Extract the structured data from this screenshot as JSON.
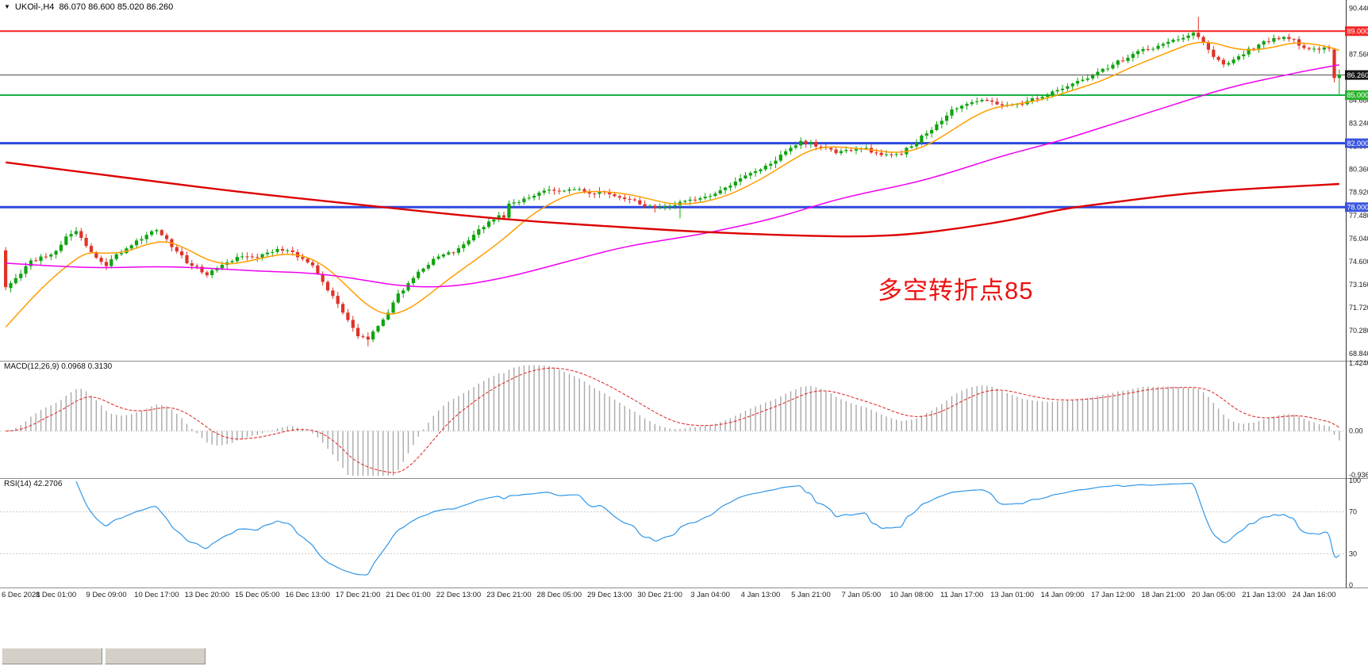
{
  "header": {
    "symbol": "UKOil-,H4",
    "ohlc": "86.070 86.600 85.020 86.260"
  },
  "annotation": {
    "text": "多空转折点85",
    "color": "#ee1111"
  },
  "time_axis": {
    "labels": [
      "6 Dec 2021",
      "8 Dec 01:00",
      "9 Dec 09:00",
      "10 Dec 17:00",
      "13 Dec 20:00",
      "15 Dec 05:00",
      "16 Dec 13:00",
      "17 Dec 21:00",
      "21 Dec 01:00",
      "22 Dec 13:00",
      "23 Dec 21:00",
      "28 Dec 05:00",
      "29 Dec 13:00",
      "30 Dec 21:00",
      "3 Jan 04:00",
      "4 Jan 13:00",
      "5 Jan 21:00",
      "7 Jan 05:00",
      "10 Jan 08:00",
      "11 Jan 17:00",
      "13 Jan 01:00",
      "14 Jan 09:00",
      "17 Jan 12:00",
      "18 Jan 21:00",
      "20 Jan 05:00",
      "21 Jan 13:00",
      "24 Jan 16:00"
    ]
  },
  "taskbar": {
    "minimized_windows": [
      "",
      ""
    ]
  },
  "chart_data": [
    {
      "type": "candlestick",
      "symbol": "UKOil-",
      "timeframe": "H4",
      "current_ohlc": {
        "open": 86.07,
        "high": 86.6,
        "low": 85.02,
        "close": 86.26
      },
      "n": 266,
      "x_label_step": 10,
      "y_range": [
        68.55,
        90.75
      ],
      "y_ticks": [
        "90.440",
        "89.000",
        "87.560",
        "86.120",
        "84.680",
        "83.240",
        "81.800",
        "80.360",
        "78.920",
        "77.480",
        "76.040",
        "74.600",
        "73.160",
        "71.720",
        "70.280",
        "68.840"
      ],
      "bull_color": "#0fa40f",
      "bear_color": "#e03228",
      "noise_seed": 11,
      "noise_amp": 0.11,
      "wick_base": 0.05,
      "wick_rand": 0.22,
      "hlines": [
        {
          "price": 89.0,
          "label": "89.000",
          "color": "#ff1f1f",
          "label_bg": "#f42525",
          "width": 2
        },
        {
          "price": 86.26,
          "label": "86.260",
          "color": "#4a4a4a",
          "label_bg": "#141414",
          "width": 1
        },
        {
          "price": 85.0,
          "label": "85.000",
          "color": "#17b24a",
          "label_bg": "#2cb42c",
          "width": 2
        },
        {
          "price": 82.0,
          "label": "82.000",
          "color": "#2c47dd",
          "label_bg": "#3a55dd",
          "width": 3
        },
        {
          "price": 78.0,
          "label": "78.000",
          "color": "#2c47dd",
          "label_bg": "#3a55dd",
          "width": 3
        }
      ],
      "close_anchors": [
        [
          0,
          73.0
        ],
        [
          2,
          73.6
        ],
        [
          5,
          74.6
        ],
        [
          8,
          75.0
        ],
        [
          10,
          75.2
        ],
        [
          12,
          76.2
        ],
        [
          14,
          76.5
        ],
        [
          16,
          75.6
        ],
        [
          18,
          74.8
        ],
        [
          20,
          74.4
        ],
        [
          22,
          75.0
        ],
        [
          25,
          75.7
        ],
        [
          28,
          76.3
        ],
        [
          30,
          76.5
        ],
        [
          33,
          75.6
        ],
        [
          36,
          74.6
        ],
        [
          40,
          73.8
        ],
        [
          43,
          74.3
        ],
        [
          46,
          74.9
        ],
        [
          50,
          74.9
        ],
        [
          53,
          75.3
        ],
        [
          56,
          75.4
        ],
        [
          58,
          74.9
        ],
        [
          60,
          74.6
        ],
        [
          62,
          73.9
        ],
        [
          64,
          72.9
        ],
        [
          66,
          72.0
        ],
        [
          68,
          70.9
        ],
        [
          70,
          70.0
        ],
        [
          72,
          69.8
        ],
        [
          74,
          70.6
        ],
        [
          76,
          71.5
        ],
        [
          78,
          72.5
        ],
        [
          80,
          73.3
        ],
        [
          83,
          74.2
        ],
        [
          86,
          74.9
        ],
        [
          88,
          75.1
        ],
        [
          90,
          75.4
        ],
        [
          93,
          76.3
        ],
        [
          96,
          77.0
        ],
        [
          98,
          77.4
        ],
        [
          99,
          77.4
        ],
        [
          100,
          78.2
        ],
        [
          103,
          78.5
        ],
        [
          106,
          78.9
        ],
        [
          108,
          79.1
        ],
        [
          110,
          78.9
        ],
        [
          113,
          79.2
        ],
        [
          116,
          78.8
        ],
        [
          118,
          79.0
        ],
        [
          120,
          78.9
        ],
        [
          123,
          78.6
        ],
        [
          126,
          78.2
        ],
        [
          128,
          78.0
        ],
        [
          130,
          77.9
        ],
        [
          133,
          78.2
        ],
        [
          136,
          78.5
        ],
        [
          140,
          78.7
        ],
        [
          143,
          79.2
        ],
        [
          146,
          79.8
        ],
        [
          148,
          80.1
        ],
        [
          150,
          80.3
        ],
        [
          153,
          81.0
        ],
        [
          156,
          81.7
        ],
        [
          158,
          82.1
        ],
        [
          160,
          82.0
        ],
        [
          163,
          81.6
        ],
        [
          166,
          81.4
        ],
        [
          168,
          81.6
        ],
        [
          170,
          81.7
        ],
        [
          173,
          81.4
        ],
        [
          176,
          81.2
        ],
        [
          178,
          81.4
        ],
        [
          180,
          81.9
        ],
        [
          183,
          82.6
        ],
        [
          186,
          83.5
        ],
        [
          188,
          84.1
        ],
        [
          190,
          84.4
        ],
        [
          193,
          84.7
        ],
        [
          196,
          84.6
        ],
        [
          198,
          84.4
        ],
        [
          200,
          84.3
        ],
        [
          203,
          84.6
        ],
        [
          206,
          85.0
        ],
        [
          208,
          85.2
        ],
        [
          210,
          85.4
        ],
        [
          213,
          85.8
        ],
        [
          216,
          86.2
        ],
        [
          218,
          86.6
        ],
        [
          220,
          86.9
        ],
        [
          223,
          87.4
        ],
        [
          226,
          87.8
        ],
        [
          228,
          88.0
        ],
        [
          230,
          88.1
        ],
        [
          233,
          88.5
        ],
        [
          236,
          88.9
        ],
        [
          238,
          88.3
        ],
        [
          240,
          87.4
        ],
        [
          242,
          86.9
        ],
        [
          244,
          87.2
        ],
        [
          246,
          87.6
        ],
        [
          248,
          88.0
        ],
        [
          250,
          88.3
        ],
        [
          253,
          88.6
        ],
        [
          256,
          88.4
        ],
        [
          258,
          88.0
        ],
        [
          260,
          87.8
        ],
        [
          262,
          88.0
        ],
        [
          263,
          87.9
        ],
        [
          264,
          86.07
        ],
        [
          265,
          86.26
        ]
      ],
      "candle_overrides": [
        {
          "i": 0,
          "o": 75.3,
          "h": 75.5,
          "l": 72.8,
          "c": 73.0
        },
        {
          "i": 72,
          "l": 69.3
        },
        {
          "i": 134,
          "l": 77.3
        },
        {
          "i": 237,
          "h": 89.9
        },
        {
          "i": 264,
          "o": 87.85,
          "h": 87.95,
          "l": 85.8,
          "c": 86.07
        },
        {
          "i": 265,
          "o": 86.07,
          "h": 86.6,
          "l": 85.02,
          "c": 86.26
        }
      ],
      "ma_lines": [
        {
          "name": "ma-fast-orange",
          "color": "#ff9e00",
          "width": 1.5,
          "points": [
            [
              0,
              70.5
            ],
            [
              4,
              71.9
            ],
            [
              8,
              73.2
            ],
            [
              12,
              74.3
            ],
            [
              16,
              75.2
            ],
            [
              20,
              75.1
            ],
            [
              24,
              75.2
            ],
            [
              28,
              75.7
            ],
            [
              32,
              75.9
            ],
            [
              36,
              75.4
            ],
            [
              40,
              74.7
            ],
            [
              44,
              74.4
            ],
            [
              48,
              74.6
            ],
            [
              52,
              74.9
            ],
            [
              56,
              75.1
            ],
            [
              60,
              74.9
            ],
            [
              64,
              74.2
            ],
            [
              68,
              73.0
            ],
            [
              72,
              71.8
            ],
            [
              76,
              71.2
            ],
            [
              80,
              71.6
            ],
            [
              84,
              72.5
            ],
            [
              88,
              73.5
            ],
            [
              92,
              74.4
            ],
            [
              96,
              75.3
            ],
            [
              100,
              76.3
            ],
            [
              104,
              77.4
            ],
            [
              108,
              78.2
            ],
            [
              112,
              78.8
            ],
            [
              116,
              79.0
            ],
            [
              120,
              78.95
            ],
            [
              124,
              78.8
            ],
            [
              128,
              78.5
            ],
            [
              132,
              78.2
            ],
            [
              136,
              78.2
            ],
            [
              140,
              78.4
            ],
            [
              144,
              78.8
            ],
            [
              148,
              79.4
            ],
            [
              152,
              80.1
            ],
            [
              156,
              80.9
            ],
            [
              160,
              81.6
            ],
            [
              164,
              81.8
            ],
            [
              168,
              81.7
            ],
            [
              172,
              81.6
            ],
            [
              176,
              81.4
            ],
            [
              180,
              81.5
            ],
            [
              184,
              82.0
            ],
            [
              188,
              82.8
            ],
            [
              192,
              83.6
            ],
            [
              196,
              84.2
            ],
            [
              200,
              84.4
            ],
            [
              204,
              84.6
            ],
            [
              208,
              84.9
            ],
            [
              212,
              85.3
            ],
            [
              216,
              85.7
            ],
            [
              220,
              86.2
            ],
            [
              224,
              86.8
            ],
            [
              228,
              87.3
            ],
            [
              232,
              87.8
            ],
            [
              236,
              88.3
            ],
            [
              240,
              88.3
            ],
            [
              244,
              87.9
            ],
            [
              248,
              87.8
            ],
            [
              252,
              88.0
            ],
            [
              256,
              88.3
            ],
            [
              260,
              88.2
            ],
            [
              263,
              88.0
            ],
            [
              265,
              87.8
            ]
          ]
        },
        {
          "name": "ma-mid-magenta",
          "color": "#f000f0",
          "width": 1.5,
          "points": [
            [
              0,
              74.5
            ],
            [
              10,
              74.3
            ],
            [
              20,
              74.2
            ],
            [
              30,
              74.3
            ],
            [
              40,
              74.2
            ],
            [
              50,
              74.0
            ],
            [
              60,
              73.9
            ],
            [
              66,
              73.7
            ],
            [
              72,
              73.4
            ],
            [
              78,
              73.1
            ],
            [
              84,
              73.0
            ],
            [
              90,
              73.1
            ],
            [
              96,
              73.4
            ],
            [
              102,
              73.8
            ],
            [
              108,
              74.3
            ],
            [
              114,
              74.8
            ],
            [
              120,
              75.3
            ],
            [
              126,
              75.7
            ],
            [
              132,
              76.0
            ],
            [
              138,
              76.3
            ],
            [
              144,
              76.7
            ],
            [
              150,
              77.1
            ],
            [
              156,
              77.6
            ],
            [
              162,
              78.2
            ],
            [
              168,
              78.7
            ],
            [
              174,
              79.1
            ],
            [
              180,
              79.5
            ],
            [
              186,
              80.0
            ],
            [
              192,
              80.6
            ],
            [
              198,
              81.2
            ],
            [
              204,
              81.7
            ],
            [
              210,
              82.2
            ],
            [
              216,
              82.8
            ],
            [
              222,
              83.4
            ],
            [
              228,
              84.0
            ],
            [
              234,
              84.6
            ],
            [
              240,
              85.2
            ],
            [
              246,
              85.7
            ],
            [
              252,
              86.1
            ],
            [
              258,
              86.5
            ],
            [
              265,
              86.9
            ]
          ]
        },
        {
          "name": "ma-slow-red",
          "color": "#dd0000",
          "width": 2.4,
          "points": [
            [
              0,
              80.8
            ],
            [
              15,
              80.2
            ],
            [
              30,
              79.6
            ],
            [
              45,
              79.0
            ],
            [
              60,
              78.5
            ],
            [
              75,
              78.0
            ],
            [
              90,
              77.5
            ],
            [
              105,
              77.1
            ],
            [
              120,
              76.8
            ],
            [
              135,
              76.5
            ],
            [
              150,
              76.3
            ],
            [
              160,
              76.2
            ],
            [
              170,
              76.15
            ],
            [
              180,
              76.3
            ],
            [
              190,
              76.7
            ],
            [
              200,
              77.2
            ],
            [
              210,
              77.9
            ],
            [
              220,
              78.3
            ],
            [
              230,
              78.7
            ],
            [
              240,
              79.0
            ],
            [
              250,
              79.2
            ],
            [
              265,
              79.45
            ]
          ]
        }
      ]
    },
    {
      "type": "macd-histogram",
      "label": "MACD(12,26,9) 0.0968 0.3130",
      "params": [
        12,
        26,
        9
      ],
      "current": {
        "macd": 0.0968,
        "signal": 0.313
      },
      "y_range": [
        -0.9363,
        1.4246
      ],
      "y_labels": [
        {
          "v": 1.4246,
          "t": "1.4246"
        },
        {
          "v": 0,
          "t": "0.00"
        },
        {
          "v": -0.9363,
          "t": "-0.9363"
        }
      ],
      "hist_color": "#a9a9a9",
      "signal_color": "#e23333"
    },
    {
      "type": "rsi-line",
      "label": "RSI(14) 42.2706",
      "period": 14,
      "current": 42.2706,
      "levels": [
        70,
        30
      ],
      "y_range": [
        0,
        100
      ],
      "y_labels": [
        {
          "v": 100,
          "t": "100"
        },
        {
          "v": 70,
          "t": "70"
        },
        {
          "v": 30,
          "t": "30"
        },
        {
          "v": 0,
          "t": "0"
        }
      ],
      "line_color": "#2f96e8"
    }
  ]
}
